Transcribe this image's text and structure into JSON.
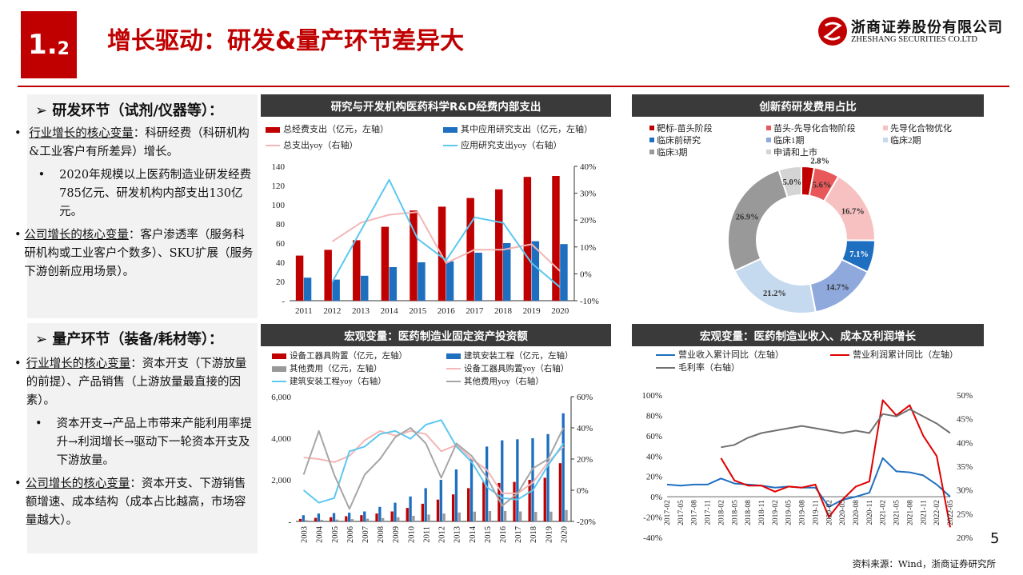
{
  "header": {
    "section_num": "1.",
    "section_sub": "2",
    "title": "增长驱动：研发&量产环节差异大",
    "logo_cn": "浙商证券股份有限公司",
    "logo_en": "ZHESHANG SECURITIES CO.LTD"
  },
  "left": {
    "rd": {
      "heading": "➢ 研发环节（试剂/仪器等）：",
      "b1_u": "行业增长的核心变量",
      "b1_rest": "：科研经费（科研机构&工业客户有所差异）增长。",
      "sub1": "2020年规模以上医药制造业研发经费785亿元、研发机构内部支出130亿元。",
      "b2_u": "公司增长的核心变量",
      "b2_rest": "：客户渗透率（服务科研机构或工业客户个数多）、SKU扩展（服务下游创新应用场景）。"
    },
    "mp": {
      "heading": "➢ 量产环节（装备/耗材等）：",
      "b1_u": "行业增长的核心变量",
      "b1_rest": "：资本开支（下游放量的前提）、产品销售（上游放量最直接的因素）。",
      "sub1": "资本开支→产品上市带来产能利用率提升→利润增长→驱动下一轮资本开支及下游放量。",
      "b2_u": "公司增长的核心变量",
      "b2_rest": "：资本开支、下游销售额增速、成本结构（成本占比越高，市场容量越大）。"
    }
  },
  "footer": {
    "source": "资料来源：Wind，浙商证券研究所",
    "page": "5"
  },
  "chart_data": [
    {
      "id": "rd",
      "type": "bar",
      "title": "研究与开发机构医药科学R&D经费内部支出",
      "legend": [
        "总经费支出（亿元，左轴）",
        "其中应用研究支出（亿元，左轴）",
        "总支出yoy（右轴）",
        "应用研究支出yoy（右轴）"
      ],
      "categories": [
        "2011",
        "2012",
        "2013",
        "2014",
        "2015",
        "2016",
        "2017",
        "2018",
        "2019",
        "2020"
      ],
      "series": [
        {
          "name": "总经费支出",
          "color": "#c00000",
          "values": [
            47,
            53,
            63,
            77,
            94,
            98,
            107,
            116,
            129,
            130
          ]
        },
        {
          "name": "其中应用研究支出",
          "color": "#1f6fc0",
          "values": [
            24,
            22,
            26,
            35,
            40,
            41,
            50,
            60,
            62,
            59
          ]
        }
      ],
      "lines": [
        {
          "name": "总支出yoy",
          "color": "#f4b6b6",
          "values": [
            null,
            12,
            19,
            22,
            23,
            4,
            9,
            9,
            11,
            1
          ]
        },
        {
          "name": "应用研究支出yoy",
          "color": "#5bc8f0",
          "values": [
            null,
            -3,
            16,
            35,
            13,
            5,
            21,
            19,
            4,
            -5
          ]
        }
      ],
      "yleft": [
        0,
        140
      ],
      "yleft_ticks": [
        "-",
        "20",
        "40",
        "60",
        "80",
        "100",
        "120",
        "140"
      ],
      "yright": [
        -10,
        40
      ],
      "yright_ticks": [
        "-10%",
        "0%",
        "10%",
        "20%",
        "30%",
        "40%"
      ]
    },
    {
      "id": "pie",
      "type": "pie",
      "title": "创新药研发费用占比",
      "legend": [
        "靶标-苗头阶段",
        "苗头-先导化合物阶段",
        "先导化合物优化",
        "临床前研究",
        "临床1期",
        "临床2期",
        "临床3期",
        "申请和上市"
      ],
      "values": [
        2.8,
        5.6,
        16.7,
        7.1,
        14.7,
        21.2,
        26.9,
        5.0
      ],
      "labels": [
        "2.8%",
        "5.6%",
        "16.7%",
        "7.1%",
        "14.7%",
        "21.2%",
        "26.9%",
        "5.0%"
      ],
      "colors": [
        "#c00000",
        "#e8585a",
        "#f6c1c0",
        "#1f6fc0",
        "#8fa9dc",
        "#c5d9ef",
        "#999999",
        "#d4d4d4"
      ]
    },
    {
      "id": "fai",
      "type": "bar",
      "title": "宏观变量：医药制造业固定资产投资额",
      "legend": [
        "设备工器具购置（亿元，左轴）",
        "建筑安装工程（亿元，左轴）",
        "其他费用（亿元，左轴）",
        "设备工器具购置yoy（右轴）",
        "建筑安装工程yoy（右轴）",
        "其他费用yoy（右轴）"
      ],
      "categories": [
        "2003",
        "2004",
        "2005",
        "2006",
        "2007",
        "2008",
        "2009",
        "2010",
        "2011",
        "2012",
        "2013",
        "2014",
        "2015",
        "2016",
        "2017",
        "2018",
        "2019",
        "2020"
      ],
      "series": [
        {
          "name": "设备工器具购置",
          "color": "#c00000",
          "values": [
            120,
            170,
            200,
            250,
            300,
            380,
            480,
            650,
            850,
            1050,
            1300,
            1600,
            1900,
            1850,
            1900,
            2000,
            2100,
            2800
          ]
        },
        {
          "name": "建筑安装工程",
          "color": "#1f6fc0",
          "values": [
            300,
            380,
            400,
            420,
            480,
            700,
            900,
            1200,
            1600,
            2000,
            2500,
            3000,
            3600,
            3900,
            3950,
            4000,
            4200,
            5200
          ]
        },
        {
          "name": "其他费用",
          "color": "#999999",
          "values": [
            60,
            80,
            90,
            110,
            130,
            160,
            200,
            270,
            330,
            380,
            430,
            470,
            500,
            500,
            480,
            460,
            470,
            550
          ]
        }
      ],
      "lines": [
        {
          "name": "设备工器具购置yoy",
          "color": "#f4b6b6",
          "values": [
            21,
            20,
            18,
            22,
            32,
            38,
            35,
            38,
            36,
            25,
            29,
            20,
            13,
            -2,
            -2,
            5,
            18,
            28
          ]
        },
        {
          "name": "建筑安装工程yoy",
          "color": "#5bc8f0",
          "values": [
            0,
            -8,
            -5,
            25,
            28,
            36,
            38,
            33,
            42,
            45,
            28,
            18,
            2,
            -5,
            -6,
            0,
            16,
            30
          ]
        },
        {
          "name": "其他费用yoy",
          "color": "#a6a6a6",
          "values": [
            10,
            38,
            10,
            -12,
            10,
            20,
            34,
            40,
            30,
            8,
            30,
            22,
            8,
            -10,
            -2,
            14,
            20,
            40
          ]
        }
      ],
      "yleft": [
        0,
        6000
      ],
      "yleft_ticks": [
        "-",
        "2,000",
        "4,000",
        "6,000"
      ],
      "yright": [
        -20,
        60
      ],
      "yright_ticks": [
        "-20%",
        "0%",
        "20%",
        "40%",
        "60%"
      ]
    },
    {
      "id": "macro",
      "type": "line",
      "title": "宏观变量：医药制造业收入、成本及利润增长",
      "legend": [
        "营业收入累计同比（左轴）",
        "营业利润累计同比（左轴）",
        "毛利率（右轴）"
      ],
      "categories": [
        "2017-02",
        "2017-05",
        "2017-08",
        "2017-11",
        "2018-02",
        "2018-05",
        "2018-08",
        "2018-11",
        "2019-02",
        "2019-05",
        "2019-08",
        "2019-11",
        "2020-02",
        "2020-05",
        "2020-08",
        "2020-11",
        "2021-02",
        "2021-05",
        "2021-08",
        "2021-11",
        "2022-02",
        "2022-05"
      ],
      "series": [
        {
          "name": "营业收入累计同比",
          "color": "#1f6fc0",
          "axis": "left",
          "values": [
            12,
            11,
            12,
            12,
            18,
            13,
            12,
            11,
            9,
            10,
            9,
            9,
            -10,
            -3,
            0,
            4,
            38,
            25,
            24,
            21,
            12,
            0
          ]
        },
        {
          "name": "营业利润累计同比",
          "color": "#e00000",
          "axis": "left",
          "values": [
            null,
            null,
            null,
            null,
            38,
            16,
            11,
            11,
            5,
            10,
            9,
            12,
            -20,
            -3,
            10,
            15,
            95,
            80,
            90,
            60,
            40,
            -30
          ]
        },
        {
          "name": "毛利率",
          "color": "#707070",
          "axis": "right",
          "values": [
            null,
            null,
            null,
            null,
            39,
            39.5,
            41,
            42,
            42.5,
            43,
            43.5,
            43,
            42.5,
            42,
            42.5,
            42,
            46,
            45.5,
            47,
            45.5,
            44,
            42
          ]
        }
      ],
      "yleft": [
        -40,
        100
      ],
      "yleft_ticks": [
        "-40%",
        "-20%",
        "0%",
        "20%",
        "40%",
        "60%",
        "80%",
        "100%"
      ],
      "yright": [
        20,
        50
      ],
      "yright_ticks": [
        "20%",
        "25%",
        "30%",
        "35%",
        "40%",
        "45%",
        "50%"
      ]
    }
  ]
}
